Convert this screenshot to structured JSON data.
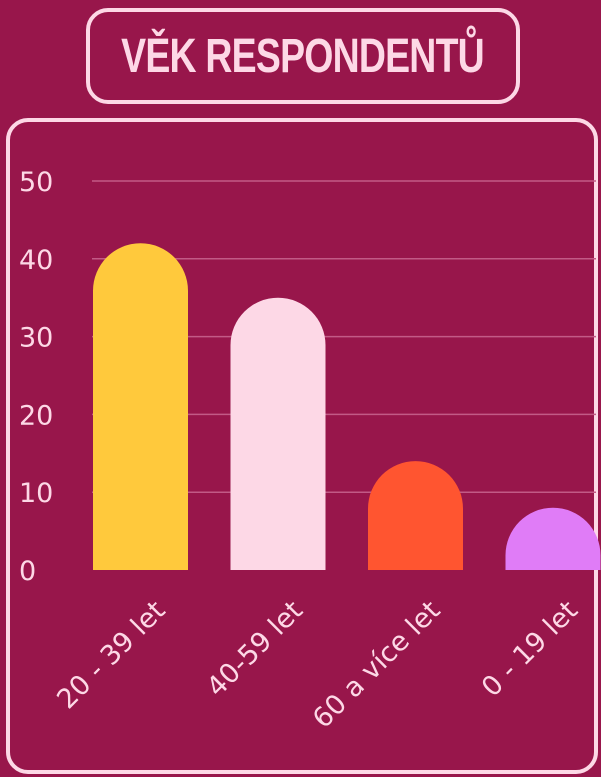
{
  "title": "VĚK RESPONDENTŮ",
  "colors": {
    "background": "#98164b",
    "frame": "#fdd8e6",
    "gridline": "#c25a86"
  },
  "chart_data": {
    "type": "bar",
    "title": "VĚK RESPONDENTŮ",
    "categories": [
      "20 - 39 let",
      "40-59 let",
      "60 a více let",
      "0 - 19 let"
    ],
    "values": [
      42,
      35,
      14,
      8
    ],
    "colors": [
      "#ffc93c",
      "#fdd8e6",
      "#ff5530",
      "#e07cf7"
    ],
    "yticks": [
      0,
      10,
      20,
      30,
      40,
      50
    ],
    "ylim": [
      0,
      50
    ],
    "xlabel": "",
    "ylabel": "",
    "grid": true,
    "legend": "none"
  }
}
